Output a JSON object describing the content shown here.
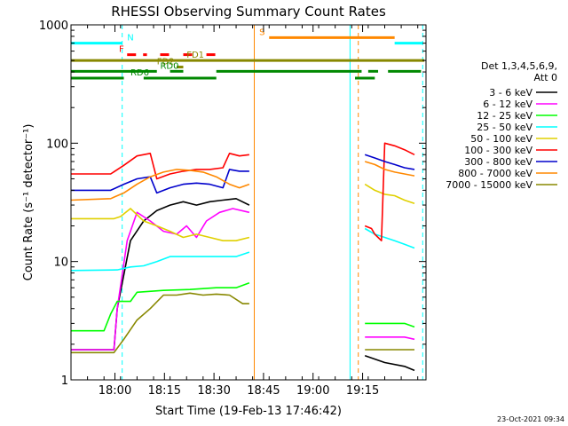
{
  "chart_data": {
    "type": "line",
    "title": "RHESSI Observing Summary Count Rates",
    "xlabel": "Start Time (19-Feb-13 17:46:42)",
    "ylabel": "Count Rate (s⁻¹ detector⁻¹)",
    "yscale": "log",
    "ylim": [
      1,
      1000
    ],
    "xlim_min": [
      0,
      107.5
    ],
    "x_ticks": [
      {
        "min": 13.3,
        "label": "18:00"
      },
      {
        "min": 28.3,
        "label": "18:15"
      },
      {
        "min": 43.3,
        "label": "18:30"
      },
      {
        "min": 58.3,
        "label": "18:45"
      },
      {
        "min": 73.3,
        "label": "19:00"
      },
      {
        "min": 88.3,
        "label": "19:15"
      }
    ],
    "y_ticks": [
      {
        "v": 1,
        "label": "1"
      },
      {
        "v": 10,
        "label": "10"
      },
      {
        "v": 100,
        "label": "100"
      },
      {
        "v": 1000,
        "label": "1000"
      }
    ],
    "legend": {
      "placement": "right",
      "header": [
        "Det 1,3,4,5,6,9,",
        "Att 0"
      ]
    },
    "stamp": "23-Oct-2021 09:34",
    "series": [
      {
        "name": "3 - 6 keV",
        "color": "#000000",
        "segments": [
          {
            "pts": [
              [
                0,
                1.8
              ],
              [
                13,
                1.8
              ],
              [
                14,
                4
              ],
              [
                18,
                15
              ],
              [
                22,
                22
              ],
              [
                26,
                27
              ],
              [
                30,
                30
              ],
              [
                34,
                32
              ],
              [
                38,
                30
              ],
              [
                42,
                32
              ],
              [
                46,
                33
              ],
              [
                50,
                34
              ],
              [
                54,
                30
              ]
            ]
          },
          {
            "pts": [
              [
                89,
                1.6
              ],
              [
                95,
                1.4
              ],
              [
                101,
                1.3
              ],
              [
                104,
                1.2
              ]
            ]
          }
        ]
      },
      {
        "name": "6 - 12 keV",
        "color": "#ff00ff",
        "segments": [
          {
            "pts": [
              [
                0,
                1.8
              ],
              [
                13,
                1.8
              ],
              [
                14,
                4
              ],
              [
                17,
                15
              ],
              [
                20,
                26
              ],
              [
                24,
                22
              ],
              [
                28,
                18
              ],
              [
                32,
                17
              ],
              [
                35,
                20
              ],
              [
                38,
                16
              ],
              [
                41,
                22
              ],
              [
                45,
                26
              ],
              [
                49,
                28
              ],
              [
                54,
                26
              ]
            ]
          },
          {
            "pts": [
              [
                89,
                2.3
              ],
              [
                95,
                2.3
              ],
              [
                101,
                2.3
              ],
              [
                104,
                2.2
              ]
            ]
          }
        ]
      },
      {
        "name": "12 - 25 keV",
        "color": "#00ff00",
        "segments": [
          {
            "pts": [
              [
                0,
                2.6
              ],
              [
                10,
                2.6
              ],
              [
                12,
                3.6
              ],
              [
                14,
                4.6
              ],
              [
                18,
                4.6
              ],
              [
                20,
                5.5
              ],
              [
                28,
                5.7
              ],
              [
                36,
                5.8
              ],
              [
                44,
                6
              ],
              [
                50,
                6
              ],
              [
                54,
                6.6
              ]
            ]
          },
          {
            "pts": [
              [
                89,
                3
              ],
              [
                95,
                3
              ],
              [
                101,
                3
              ],
              [
                104,
                2.8
              ]
            ]
          }
        ]
      },
      {
        "name": "25 - 50 keV",
        "color": "#00ffff",
        "segments": [
          {
            "pts": [
              [
                0,
                8.4
              ],
              [
                14,
                8.5
              ],
              [
                18,
                9
              ],
              [
                22,
                9.2
              ],
              [
                26,
                10
              ],
              [
                30,
                11
              ],
              [
                34,
                11
              ],
              [
                38,
                11
              ],
              [
                42,
                11
              ],
              [
                46,
                11
              ],
              [
                50,
                11
              ],
              [
                54,
                12
              ]
            ]
          },
          {
            "pts": [
              [
                89,
                19
              ],
              [
                92,
                17
              ],
              [
                95,
                16
              ],
              [
                98,
                15
              ],
              [
                101,
                14
              ],
              [
                104,
                13
              ]
            ]
          }
        ]
      },
      {
        "name": "50 - 100 keV",
        "color": "#e0d000",
        "segments": [
          {
            "pts": [
              [
                0,
                23
              ],
              [
                13,
                23
              ],
              [
                15,
                24
              ],
              [
                18,
                28
              ],
              [
                22,
                22
              ],
              [
                26,
                20
              ],
              [
                30,
                18
              ],
              [
                34,
                16
              ],
              [
                38,
                17
              ],
              [
                42,
                16
              ],
              [
                46,
                15
              ],
              [
                50,
                15
              ],
              [
                54,
                16
              ]
            ]
          },
          {
            "pts": [
              [
                89,
                45
              ],
              [
                92,
                40
              ],
              [
                95,
                37
              ],
              [
                98,
                36
              ],
              [
                101,
                33
              ],
              [
                104,
                31
              ]
            ]
          }
        ]
      },
      {
        "name": "100 - 300 keV",
        "color": "#ff0000",
        "segments": [
          {
            "pts": [
              [
                0,
                55
              ],
              [
                12,
                55
              ],
              [
                16,
                65
              ],
              [
                20,
                78
              ],
              [
                24,
                82
              ],
              [
                26,
                50
              ],
              [
                30,
                55
              ],
              [
                34,
                58
              ],
              [
                38,
                60
              ],
              [
                42,
                60
              ],
              [
                46,
                62
              ],
              [
                48,
                82
              ],
              [
                51,
                78
              ],
              [
                54,
                80
              ]
            ]
          },
          {
            "pts": [
              [
                89,
                20
              ],
              [
                91,
                19
              ],
              [
                92,
                17
              ],
              [
                93,
                16
              ],
              [
                94,
                15
              ],
              [
                95,
                100
              ],
              [
                98,
                95
              ],
              [
                101,
                88
              ],
              [
                104,
                80
              ]
            ]
          }
        ]
      },
      {
        "name": "300 - 800 keV",
        "color": "#0000cc",
        "segments": [
          {
            "pts": [
              [
                0,
                40
              ],
              [
                12,
                40
              ],
              [
                16,
                45
              ],
              [
                20,
                50
              ],
              [
                24,
                52
              ],
              [
                26,
                38
              ],
              [
                30,
                42
              ],
              [
                34,
                45
              ],
              [
                38,
                46
              ],
              [
                42,
                45
              ],
              [
                46,
                42
              ],
              [
                48,
                60
              ],
              [
                51,
                58
              ],
              [
                54,
                58
              ]
            ]
          },
          {
            "pts": [
              [
                89,
                80
              ],
              [
                92,
                75
              ],
              [
                95,
                70
              ],
              [
                98,
                66
              ],
              [
                101,
                62
              ],
              [
                104,
                60
              ]
            ]
          }
        ]
      },
      {
        "name": "800 - 7000 keV",
        "color": "#ff8800",
        "segments": [
          {
            "pts": [
              [
                0,
                33
              ],
              [
                12,
                34
              ],
              [
                16,
                38
              ],
              [
                20,
                45
              ],
              [
                24,
                52
              ],
              [
                28,
                57
              ],
              [
                32,
                60
              ],
              [
                36,
                59
              ],
              [
                40,
                57
              ],
              [
                44,
                52
              ],
              [
                48,
                45
              ],
              [
                51,
                42
              ],
              [
                54,
                45
              ]
            ]
          },
          {
            "pts": [
              [
                89,
                70
              ],
              [
                92,
                66
              ],
              [
                95,
                60
              ],
              [
                98,
                57
              ],
              [
                101,
                55
              ],
              [
                104,
                53
              ]
            ]
          }
        ]
      },
      {
        "name": "7000 - 15000 keV",
        "color": "#888800",
        "segments": [
          {
            "pts": [
              [
                0,
                1.7
              ],
              [
                13,
                1.7
              ],
              [
                16,
                2.2
              ],
              [
                20,
                3.2
              ],
              [
                24,
                4
              ],
              [
                28,
                5.2
              ],
              [
                32,
                5.2
              ],
              [
                36,
                5.4
              ],
              [
                40,
                5.2
              ],
              [
                44,
                5.3
              ],
              [
                48,
                5.2
              ],
              [
                52,
                4.4
              ],
              [
                54,
                4.4
              ]
            ]
          },
          {
            "pts": [
              [
                89,
                1.8
              ],
              [
                92,
                1.8
              ],
              [
                95,
                1.8
              ],
              [
                98,
                1.8
              ],
              [
                101,
                1.8
              ],
              [
                104,
                1.8
              ]
            ]
          }
        ]
      }
    ],
    "flag_bars": [
      {
        "label": "N",
        "color": "#00ffff",
        "y": 700,
        "style": "solid",
        "segments": [
          [
            0,
            15.5
          ],
          [
            98,
            106.5
          ]
        ],
        "label_at": 17
      },
      {
        "label": "S",
        "color": "#ff8800",
        "y": 780,
        "style": "solid",
        "segments": [
          [
            60,
            98
          ]
        ],
        "label_at": 57
      },
      {
        "label": "F",
        "color": "#ff0000",
        "y": 560,
        "style": "dashed",
        "segments": [
          [
            17,
            23
          ],
          [
            27,
            31
          ],
          [
            34,
            38
          ],
          [
            41,
            44
          ]
        ],
        "label_at": 14.5
      },
      {
        "label": "FD1",
        "color": "#888800",
        "y": 500,
        "style": "solid",
        "segments": [
          [
            0,
            107
          ]
        ],
        "label_at": 35
      },
      {
        "label": "FD2",
        "color": "#888800",
        "y": 440,
        "style": "solid",
        "segments": [
          [
            32,
            34
          ]
        ],
        "label_at": 26
      },
      {
        "label": "RD0",
        "color": "#008800",
        "y": 405,
        "style": "solid",
        "segments": [
          [
            0,
            26
          ],
          [
            30,
            34
          ],
          [
            44,
            88
          ],
          [
            90,
            93
          ],
          [
            96,
            106
          ]
        ],
        "label_at": 27
      },
      {
        "label": "RD6",
        "color": "#008800",
        "y": 355,
        "style": "solid",
        "segments": [
          [
            0,
            16
          ],
          [
            22,
            44
          ],
          [
            86,
            92
          ]
        ],
        "label_at": 18
      }
    ],
    "vlines": [
      {
        "min": 15.5,
        "color": "#00ffff",
        "style": "dashed"
      },
      {
        "min": 55.5,
        "color": "#ff8800",
        "style": "solid"
      },
      {
        "min": 84.5,
        "color": "#00ffff",
        "style": "solid"
      },
      {
        "min": 87,
        "color": "#ff8800",
        "style": "dashed"
      },
      {
        "min": 106.5,
        "color": "#00ffff",
        "style": "dashed"
      }
    ]
  }
}
